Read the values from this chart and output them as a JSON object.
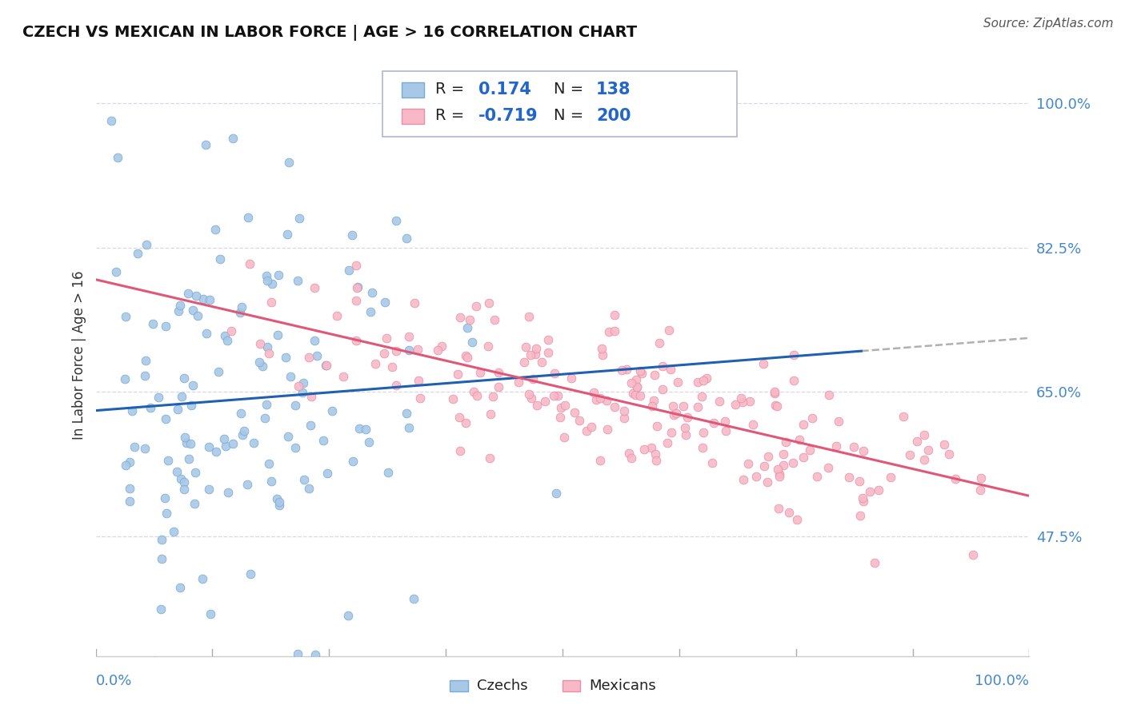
{
  "title": "CZECH VS MEXICAN IN LABOR FORCE | AGE > 16 CORRELATION CHART",
  "source_text": "Source: ZipAtlas.com",
  "ylabel": "In Labor Force | Age > 16",
  "ylabel_ticks": [
    "47.5%",
    "65.0%",
    "82.5%",
    "100.0%"
  ],
  "ylabel_tick_values": [
    0.475,
    0.65,
    0.825,
    1.0
  ],
  "legend_label1": "Czechs",
  "legend_label2": "Mexicans",
  "R1": 0.174,
  "N1": 138,
  "R2": -0.719,
  "N2": 200,
  "color_czech_fill": "#a8c8e8",
  "color_czech_edge": "#7aaad0",
  "color_czech_line": "#2060b0",
  "color_mexican_fill": "#f8b8c8",
  "color_mexican_edge": "#e890a8",
  "color_mexican_line": "#e05878",
  "color_dashed": "#b0b0b0",
  "background_color": "#ffffff",
  "grid_color": "#d8d8e8",
  "seed": 42,
  "xmin": 0.0,
  "xmax": 1.0,
  "ymin": 0.33,
  "ymax": 1.06
}
